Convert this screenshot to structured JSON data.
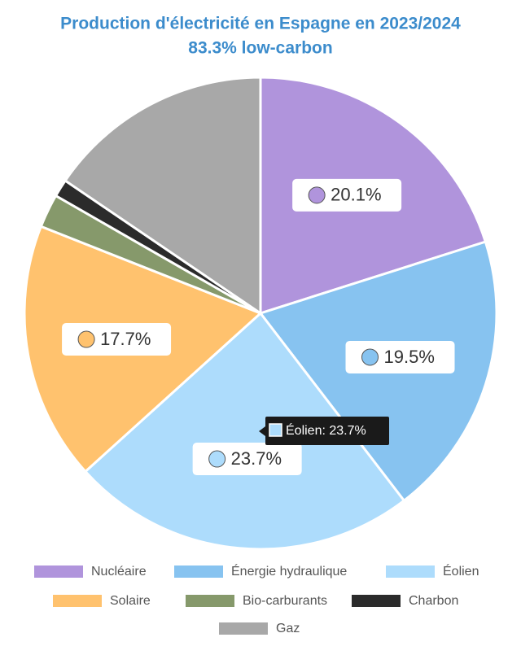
{
  "chart_data": {
    "type": "pie",
    "title": "Production d'électricité en Espagne en 2023/2024",
    "subtitle": "83.3% low-carbon",
    "categories": [
      "Nucléaire",
      "Énergie hydraulique",
      "Éolien",
      "Solaire",
      "Bio-carburants",
      "Charbon",
      "Gaz"
    ],
    "values": [
      20.1,
      19.5,
      23.7,
      17.7,
      2.3,
      1.2,
      15.5
    ],
    "value_labels": [
      "20.1%",
      "19.5%",
      "23.7%",
      "17.7%",
      null,
      null,
      null
    ],
    "colors": [
      "#b094dc",
      "#87c3f0",
      "#addcfc",
      "#ffc26e",
      "#86996b",
      "#2b2b2b",
      "#a8a8a8"
    ],
    "tooltip": "Éolien: 23.7%"
  }
}
